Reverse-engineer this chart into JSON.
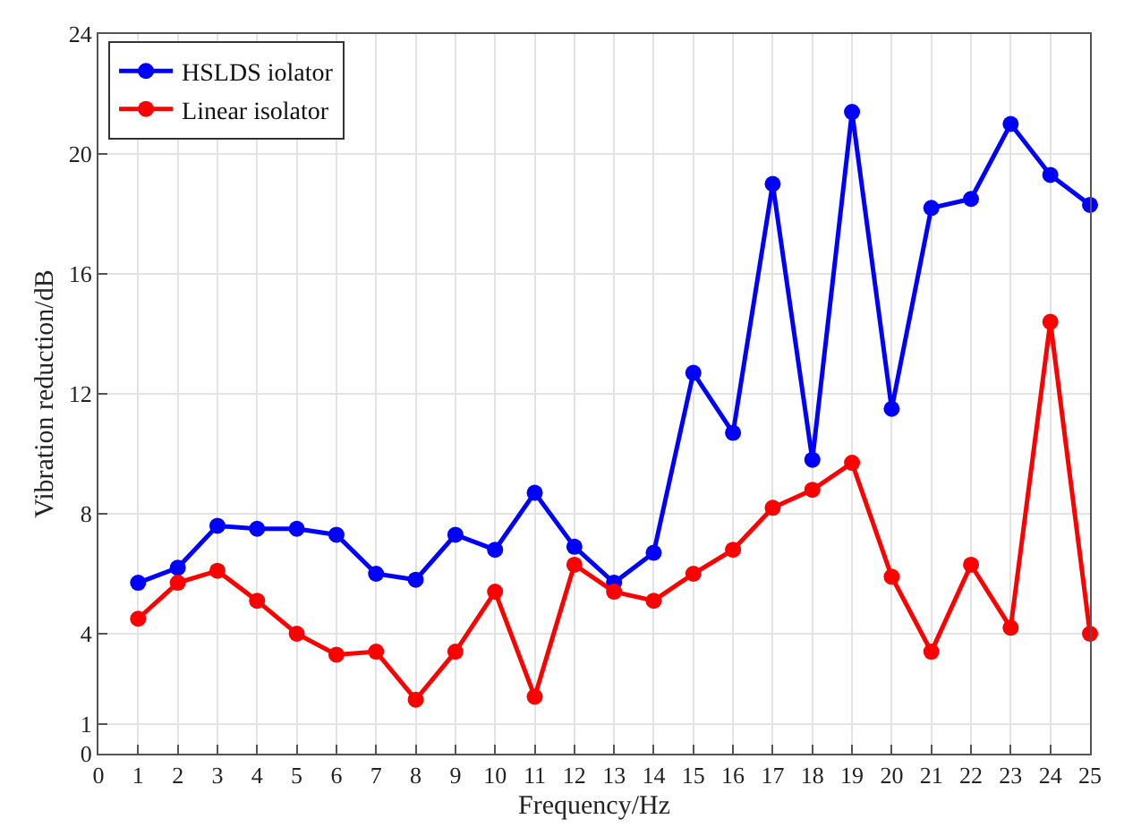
{
  "chart_data": {
    "type": "line",
    "xlabel": "Frequency/Hz",
    "ylabel": "Vibration reduction/dB",
    "x": [
      1,
      2,
      3,
      4,
      5,
      6,
      7,
      8,
      9,
      10,
      11,
      12,
      13,
      14,
      15,
      16,
      17,
      18,
      19,
      20,
      21,
      22,
      23,
      24,
      25
    ],
    "series": [
      {
        "name": "HSLDS iolator",
        "color": "#0000ff",
        "values": [
          5.7,
          6.2,
          7.6,
          7.5,
          7.5,
          7.3,
          6.0,
          5.8,
          7.3,
          6.8,
          8.7,
          6.9,
          5.7,
          6.7,
          12.7,
          10.7,
          19.0,
          9.8,
          21.4,
          11.5,
          18.2,
          18.5,
          21.0,
          19.3,
          18.3
        ]
      },
      {
        "name": "Linear isolator",
        "color": "#ff0000",
        "values": [
          4.5,
          5.7,
          6.1,
          5.1,
          4.0,
          3.3,
          3.4,
          1.8,
          3.4,
          5.4,
          1.9,
          6.3,
          5.4,
          5.1,
          6.0,
          6.8,
          8.2,
          8.8,
          9.7,
          5.9,
          3.4,
          6.3,
          4.2,
          14.4,
          4.0
        ]
      }
    ],
    "xlim": [
      0,
      25
    ],
    "xticks": [
      0,
      1,
      2,
      3,
      4,
      5,
      6,
      7,
      8,
      9,
      10,
      11,
      12,
      13,
      14,
      15,
      16,
      17,
      18,
      19,
      20,
      21,
      22,
      23,
      24,
      25
    ],
    "ylim": [
      0,
      24
    ],
    "yticks": [
      0,
      1,
      4,
      8,
      12,
      16,
      20,
      24
    ],
    "grid": true,
    "legend": "top left",
    "marker": "circle",
    "line_style": "solid"
  }
}
